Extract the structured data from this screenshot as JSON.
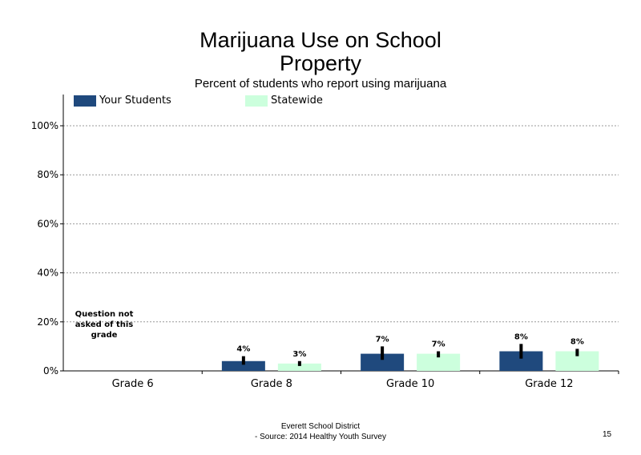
{
  "title_line1": "Marijuana Use on School",
  "title_line2": "Property",
  "subtitle": "Percent of students who report using marijuana",
  "footer_line1": "Everett School District",
  "footer_line2": "- Source: 2014 Healthy  Youth Survey",
  "page_number": "15",
  "chart_data": {
    "type": "bar",
    "categories": [
      "Grade 6",
      "Grade 8",
      "Grade 10",
      "Grade 12"
    ],
    "series": [
      {
        "name": "Your Students",
        "color": "#1f497d",
        "values": [
          null,
          4,
          7,
          8
        ],
        "labels": [
          "",
          "4%",
          "7%",
          "8%"
        ],
        "error_low": [
          null,
          2.5,
          4.5,
          5
        ],
        "error_high": [
          null,
          6,
          10,
          11
        ]
      },
      {
        "name": "Statewide",
        "color": "#ccffdd",
        "values": [
          null,
          3,
          7,
          8
        ],
        "labels": [
          "",
          "3%",
          "7%",
          "8%"
        ],
        "error_low": [
          null,
          2,
          5.5,
          6
        ],
        "error_high": [
          null,
          4,
          8,
          9
        ]
      }
    ],
    "ylim": [
      0,
      100
    ],
    "yticks": [
      0,
      20,
      40,
      60,
      80,
      100
    ],
    "ytick_labels": [
      "0%",
      "20%",
      "40%",
      "60%",
      "80%",
      "100%"
    ],
    "grid": "dotted horizontal",
    "legend_position": "top-left",
    "annotation": "Question not asked of this grade"
  }
}
